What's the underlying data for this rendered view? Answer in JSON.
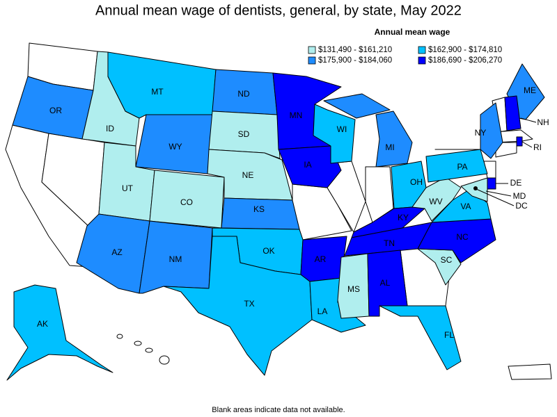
{
  "title": "Annual mean wage of dentists, general, by state, May 2022",
  "legend": {
    "title": "Annual mean wage",
    "items": [
      {
        "label": "$131,490 - $161,210",
        "color": "#b0eeee"
      },
      {
        "label": "$162,900 - $174,810",
        "color": "#00c0ff"
      },
      {
        "label": "$175,900 - $184,060",
        "color": "#1e8cff"
      },
      {
        "label": "$186,690 - $206,270",
        "color": "#0000ff"
      }
    ]
  },
  "states": [
    {
      "label": "OR",
      "bin": 2
    },
    {
      "label": "ID",
      "bin": 0
    },
    {
      "label": "MT",
      "bin": 1
    },
    {
      "label": "WY",
      "bin": 2
    },
    {
      "label": "UT",
      "bin": 0
    },
    {
      "label": "CO",
      "bin": 0
    },
    {
      "label": "AZ",
      "bin": 2
    },
    {
      "label": "NM",
      "bin": 2
    },
    {
      "label": "ND",
      "bin": 2
    },
    {
      "label": "SD",
      "bin": 0
    },
    {
      "label": "NE",
      "bin": 0
    },
    {
      "label": "KS",
      "bin": 2
    },
    {
      "label": "OK",
      "bin": 1
    },
    {
      "label": "TX",
      "bin": 1
    },
    {
      "label": "MN",
      "bin": 3
    },
    {
      "label": "IA",
      "bin": 3
    },
    {
      "label": "AR",
      "bin": 3
    },
    {
      "label": "LA",
      "bin": 1
    },
    {
      "label": "WI",
      "bin": 1
    },
    {
      "label": "MI",
      "bin": 2
    },
    {
      "label": "OH",
      "bin": 1
    },
    {
      "label": "KY",
      "bin": 3
    },
    {
      "label": "TN",
      "bin": 3
    },
    {
      "label": "MS",
      "bin": 0
    },
    {
      "label": "AL",
      "bin": 3
    },
    {
      "label": "FL",
      "bin": 1
    },
    {
      "label": "SC",
      "bin": 0
    },
    {
      "label": "NC",
      "bin": 3
    },
    {
      "label": "VA",
      "bin": 1
    },
    {
      "label": "WV",
      "bin": 0
    },
    {
      "label": "PA",
      "bin": 1
    },
    {
      "label": "NY",
      "bin": 2
    },
    {
      "label": "ME",
      "bin": 2
    },
    {
      "label": "NH",
      "bin": 3
    },
    {
      "label": "RI",
      "bin": 3
    },
    {
      "label": "DE",
      "bin": 3
    },
    {
      "label": "MD",
      "bin": 0
    },
    {
      "label": "DC"
    },
    {
      "label": "AK",
      "bin": 1
    }
  ],
  "footnote": "Blank areas indicate data not available."
}
